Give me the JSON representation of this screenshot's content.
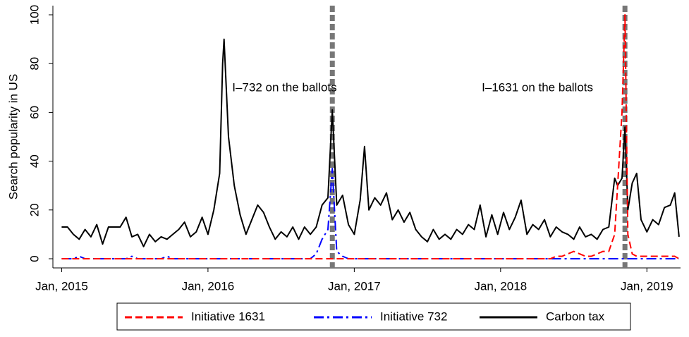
{
  "chart_data": {
    "type": "line",
    "y_label": "Search popularity in US",
    "xlim": [
      2014.94,
      2019.23
    ],
    "ylim": [
      0,
      100
    ],
    "xticks": [
      {
        "value": 2015,
        "label": "Jan, 2015"
      },
      {
        "value": 2016,
        "label": "Jan, 2016"
      },
      {
        "value": 2017,
        "label": "Jan, 2017"
      },
      {
        "value": 2018,
        "label": "Jan, 2018"
      },
      {
        "value": 2019,
        "label": "Jan, 2019"
      }
    ],
    "yticks": [
      0,
      20,
      40,
      60,
      80,
      100
    ],
    "grid": false,
    "legend": "bottom",
    "x": [
      2015.0,
      2015.04,
      2015.08,
      2015.12,
      2015.16,
      2015.2,
      2015.24,
      2015.28,
      2015.32,
      2015.36,
      2015.4,
      2015.44,
      2015.48,
      2015.52,
      2015.56,
      2015.6,
      2015.64,
      2015.68,
      2015.72,
      2015.76,
      2015.8,
      2015.84,
      2015.88,
      2015.92,
      2015.96,
      2016.0,
      2016.04,
      2016.08,
      2016.1,
      2016.11,
      2016.14,
      2016.18,
      2016.22,
      2016.26,
      2016.3,
      2016.34,
      2016.38,
      2016.42,
      2016.46,
      2016.5,
      2016.54,
      2016.58,
      2016.62,
      2016.66,
      2016.7,
      2016.74,
      2016.78,
      2016.82,
      2016.85,
      2016.88,
      2016.92,
      2016.96,
      2017.0,
      2017.04,
      2017.07,
      2017.1,
      2017.14,
      2017.18,
      2017.22,
      2017.26,
      2017.3,
      2017.34,
      2017.38,
      2017.42,
      2017.46,
      2017.5,
      2017.54,
      2017.58,
      2017.62,
      2017.66,
      2017.7,
      2017.74,
      2017.78,
      2017.82,
      2017.86,
      2017.9,
      2017.94,
      2017.98,
      2018.02,
      2018.06,
      2018.1,
      2018.14,
      2018.18,
      2018.22,
      2018.26,
      2018.3,
      2018.34,
      2018.38,
      2018.42,
      2018.46,
      2018.5,
      2018.54,
      2018.58,
      2018.62,
      2018.66,
      2018.7,
      2018.74,
      2018.78,
      2018.8,
      2018.83,
      2018.85,
      2018.87,
      2018.9,
      2018.93,
      2018.96,
      2019.0,
      2019.04,
      2019.08,
      2019.12,
      2019.16,
      2019.19,
      2019.22
    ],
    "series": [
      {
        "name": "Initiative 1631",
        "color": "#ff0000",
        "dash": "dashed",
        "values": [
          0,
          0,
          0,
          0,
          0,
          0,
          0,
          0,
          0,
          0,
          0,
          0,
          0,
          0,
          0,
          0,
          0,
          0,
          0,
          0,
          0,
          0,
          0,
          0,
          0,
          0,
          0,
          0,
          0,
          0,
          0,
          0,
          0,
          0,
          0,
          0,
          0,
          0,
          0,
          0,
          0,
          0,
          0,
          0,
          0,
          0,
          0,
          0,
          0,
          0,
          0,
          0,
          0,
          0,
          0,
          0,
          0,
          0,
          0,
          0,
          0,
          0,
          0,
          0,
          0,
          0,
          0,
          0,
          0,
          0,
          0,
          0,
          0,
          0,
          0,
          0,
          0,
          0,
          0,
          0,
          0,
          0,
          0,
          0,
          0,
          0,
          0,
          1,
          1,
          2,
          3,
          2,
          1,
          1,
          2,
          3,
          3,
          10,
          30,
          60,
          100,
          10,
          2,
          1,
          1,
          1,
          1,
          1,
          1,
          1,
          1,
          0
        ]
      },
      {
        "name": "Initiative 732",
        "color": "#0000ff",
        "dash": "dashdot",
        "values": [
          0,
          0,
          0,
          1,
          0,
          0,
          0,
          0,
          0,
          0,
          0,
          0,
          1,
          0,
          0,
          0,
          0,
          0,
          1,
          0,
          0,
          0,
          0,
          0,
          0,
          0,
          0,
          0,
          0,
          0,
          0,
          0,
          0,
          0,
          0,
          0,
          0,
          0,
          0,
          0,
          0,
          0,
          0,
          0,
          0,
          2,
          8,
          12,
          37,
          3,
          1,
          0,
          0,
          0,
          0,
          0,
          0,
          0,
          0,
          0,
          0,
          0,
          0,
          0,
          0,
          0,
          0,
          0,
          0,
          0,
          0,
          0,
          0,
          0,
          0,
          0,
          0,
          0,
          0,
          0,
          0,
          0,
          0,
          0,
          0,
          0,
          0,
          0,
          0,
          0,
          0,
          0,
          0,
          0,
          0,
          0,
          0,
          0,
          0,
          0,
          0,
          0,
          0,
          0,
          0,
          0,
          0,
          0,
          0,
          0,
          0,
          0
        ]
      },
      {
        "name": "Carbon tax",
        "color": "#000000",
        "dash": "solid",
        "values": [
          13,
          13,
          10,
          8,
          12,
          9,
          14,
          6,
          13,
          13,
          13,
          17,
          9,
          10,
          5,
          10,
          7,
          9,
          8,
          10,
          12,
          15,
          9,
          11,
          17,
          10,
          20,
          35,
          80,
          90,
          50,
          30,
          18,
          10,
          16,
          22,
          19,
          13,
          8,
          11,
          9,
          13,
          8,
          13,
          10,
          13,
          22,
          25,
          61,
          22,
          26,
          14,
          10,
          24,
          46,
          20,
          25,
          22,
          27,
          16,
          20,
          15,
          19,
          12,
          9,
          7,
          12,
          8,
          10,
          8,
          12,
          10,
          14,
          12,
          22,
          9,
          18,
          10,
          19,
          12,
          17,
          24,
          10,
          14,
          12,
          16,
          9,
          13,
          11,
          10,
          8,
          13,
          9,
          10,
          8,
          12,
          13,
          33,
          30,
          33,
          54,
          20,
          31,
          35,
          16,
          11,
          16,
          14,
          21,
          22,
          27,
          9
        ]
      }
    ],
    "annotations": [
      {
        "x": 2016.85,
        "text": "I–732 on the ballots"
      },
      {
        "x": 2018.85,
        "text": "I–1631 on the ballots"
      }
    ]
  }
}
